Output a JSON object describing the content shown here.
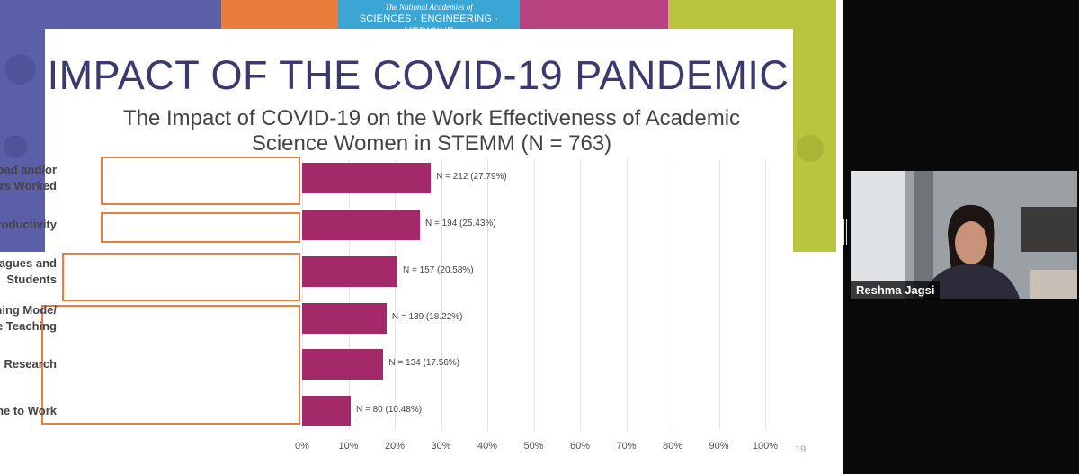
{
  "banner": {
    "org_line1": "The National Academies of",
    "org_line2": "SCIENCES · ENGINEERING · MEDICINE"
  },
  "slide": {
    "title": "IMPACT OF THE COVID-19 PANDEMIC",
    "subtitle": "The Impact of COVID-19 on the Work Effectiveness of Academic Science Women in STEMM (N = 763)",
    "page_number": "19"
  },
  "chart_data": {
    "type": "bar",
    "orientation": "horizontal",
    "title": "The Impact of COVID-19 on the Work Effectiveness of Academic Science Women in STEMM (N = 763)",
    "categories": [
      "Increased Workload and/or Hours Worked",
      "Decreased Productivity",
      "Difficulty Interacting with Colleagues and Students",
      "Challenges of Changing Teaching Mode/ Remote Teaching",
      "Negative Impact on Research",
      "Less Time to Work"
    ],
    "values": [
      27.79,
      25.43,
      20.58,
      18.22,
      17.56,
      10.48
    ],
    "data_labels": [
      "N = 212 (27.79%)",
      "N = 194 (25.43%)",
      "N = 157 (20.58%)",
      "N = 139 (18.22%)",
      "N = 134 (17.56%)",
      "N = 80 (10.48%)"
    ],
    "xlim": [
      0,
      100
    ],
    "x_ticks": [
      "0%",
      "10%",
      "20%",
      "30%",
      "40%",
      "50%",
      "60%",
      "70%",
      "80%",
      "90%",
      "100%"
    ],
    "grid": true,
    "bar_color": "#a32968",
    "highlight_color": "#ea7d3c"
  },
  "participant": {
    "name": "Reshma Jagsi"
  },
  "colors": {
    "purple": "#5a5fa8",
    "orange": "#ea7d3c",
    "cyan": "#3aa6d6",
    "magenta": "#b8417f",
    "lime": "#b9c43f"
  }
}
